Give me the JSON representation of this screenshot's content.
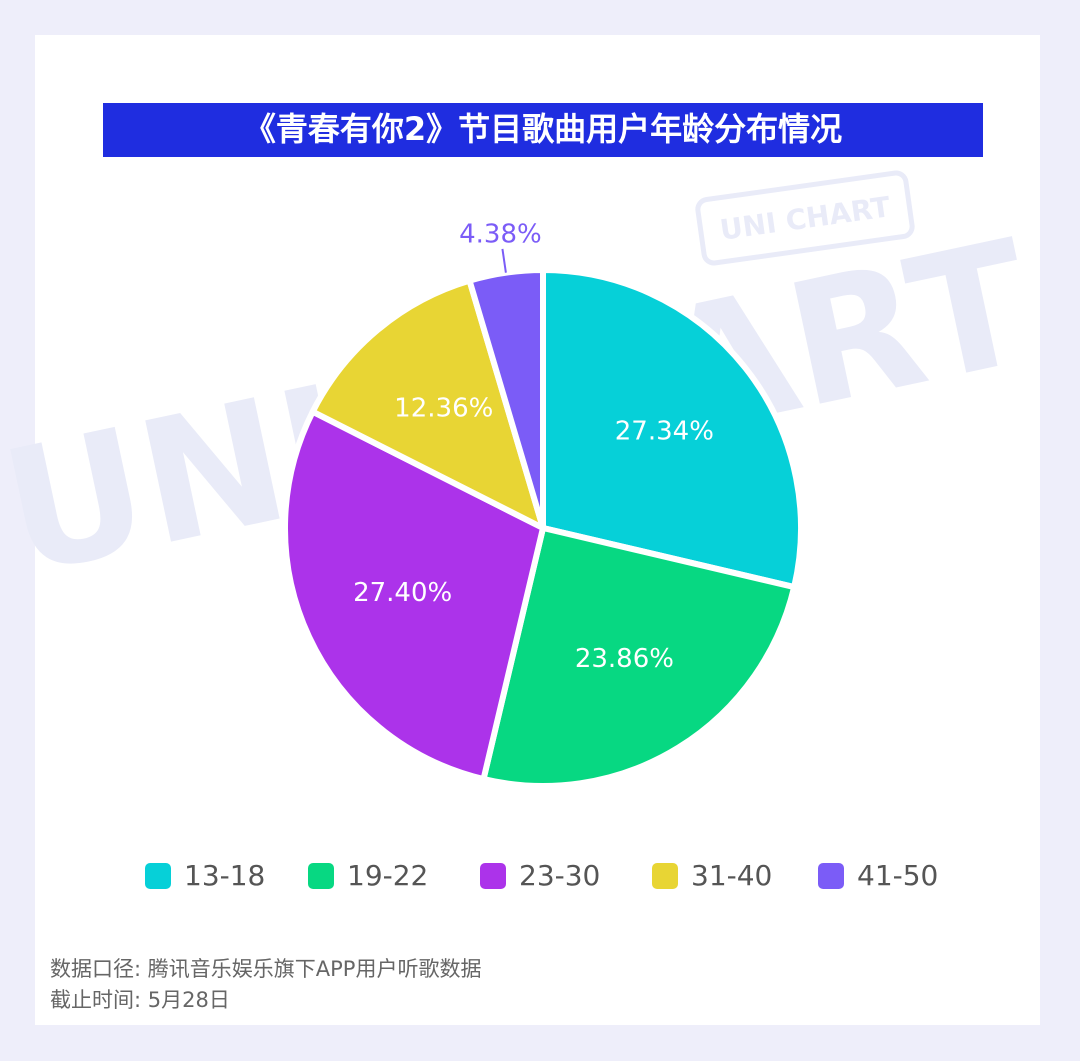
{
  "chart_data": {
    "type": "pie",
    "title": "《青春有你2》节目歌曲用户年龄分布情况",
    "watermark": "UNI CHART",
    "categories": [
      "13-18",
      "19-22",
      "23-30",
      "31-40",
      "41-50"
    ],
    "values": [
      27.34,
      23.86,
      27.4,
      12.36,
      4.38
    ],
    "value_labels": [
      "27.34%",
      "23.86%",
      "27.40%",
      "12.36%",
      "4.38%"
    ],
    "colors": [
      "#06d0d8",
      "#07d882",
      "#ac33ea",
      "#e8d534",
      "#7b5cf7"
    ],
    "notes": [
      "数据口径: 腾讯音乐娱乐旗下APP用户听歌数据",
      "截止时间: 5月28日"
    ]
  }
}
